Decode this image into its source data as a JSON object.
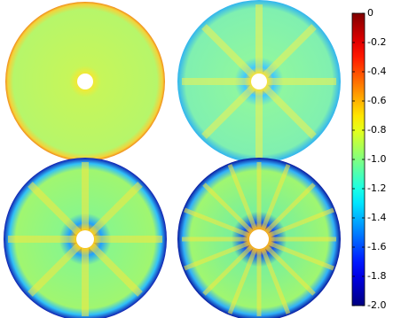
{
  "chart_data": {
    "type": "heatmap",
    "colormap": "jet",
    "zlim": [
      -2,
      0
    ],
    "zticks": [
      0,
      -0.2,
      -0.4,
      -0.6,
      -0.8,
      {
        "value": -1,
        "label": "-1.0"
      },
      -1.2,
      -1.4,
      -1.6,
      -1.8,
      {
        "value": -2,
        "label": "-2.0"
      }
    ]
  }
}
